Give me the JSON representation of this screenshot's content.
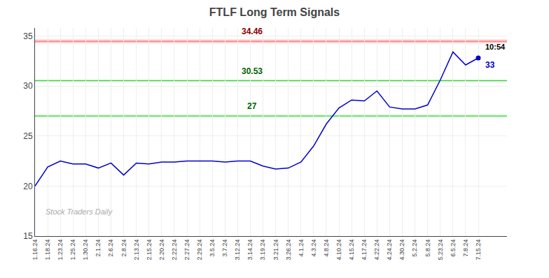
{
  "chart_data": {
    "type": "line",
    "title": "FTLF Long Term Signals",
    "categories": [
      "1.16.24",
      "1.18.24",
      "1.23.24",
      "1.25.24",
      "1.30.24",
      "2.1.24",
      "2.6.24",
      "2.8.24",
      "2.13.24",
      "2.15.24",
      "2.20.24",
      "2.22.24",
      "2.27.24",
      "2.29.24",
      "3.5.24",
      "3.7.24",
      "3.12.24",
      "3.14.24",
      "3.19.24",
      "3.21.24",
      "3.26.24",
      "4.1.24",
      "4.3.24",
      "4.8.24",
      "4.10.24",
      "4.15.24",
      "4.17.24",
      "4.22.24",
      "4.24.24",
      "4.30.24",
      "5.2.24",
      "5.8.24",
      "5.23.24",
      "6.5.24",
      "7.8.24",
      "7.15.24"
    ],
    "values": [
      20.0,
      21.9,
      22.5,
      22.2,
      22.2,
      21.8,
      22.3,
      21.1,
      22.3,
      22.2,
      22.4,
      22.4,
      22.5,
      22.5,
      22.5,
      22.4,
      22.5,
      22.5,
      22.0,
      21.7,
      21.8,
      22.4,
      24.0,
      26.2,
      27.8,
      28.6,
      28.5,
      29.5,
      27.9,
      27.7,
      27.7,
      28.1,
      30.6,
      33.4,
      32.1,
      32.8
    ],
    "color": "#0000cc",
    "marker": "last",
    "hlines": [
      {
        "value": 34.46,
        "label": "34.46",
        "color": "#ff6666",
        "band_color": "#ffcccc",
        "label_color": "darkred"
      },
      {
        "value": 30.53,
        "label": "30.53",
        "color": "#44bb44",
        "band_color": "#ccffcc",
        "label_color": "darkgreen"
      },
      {
        "value": 27.0,
        "label": "27",
        "color": "#44bb44",
        "band_color": "#ccffcc",
        "label_color": "darkgreen"
      }
    ],
    "last_time_label": "10:54",
    "last_value_label": "33",
    "watermark": "Stock Traders Daily",
    "ylim": [
      15,
      35.8
    ],
    "yticks": [
      15,
      20,
      25,
      30,
      35
    ],
    "grid": true
  }
}
